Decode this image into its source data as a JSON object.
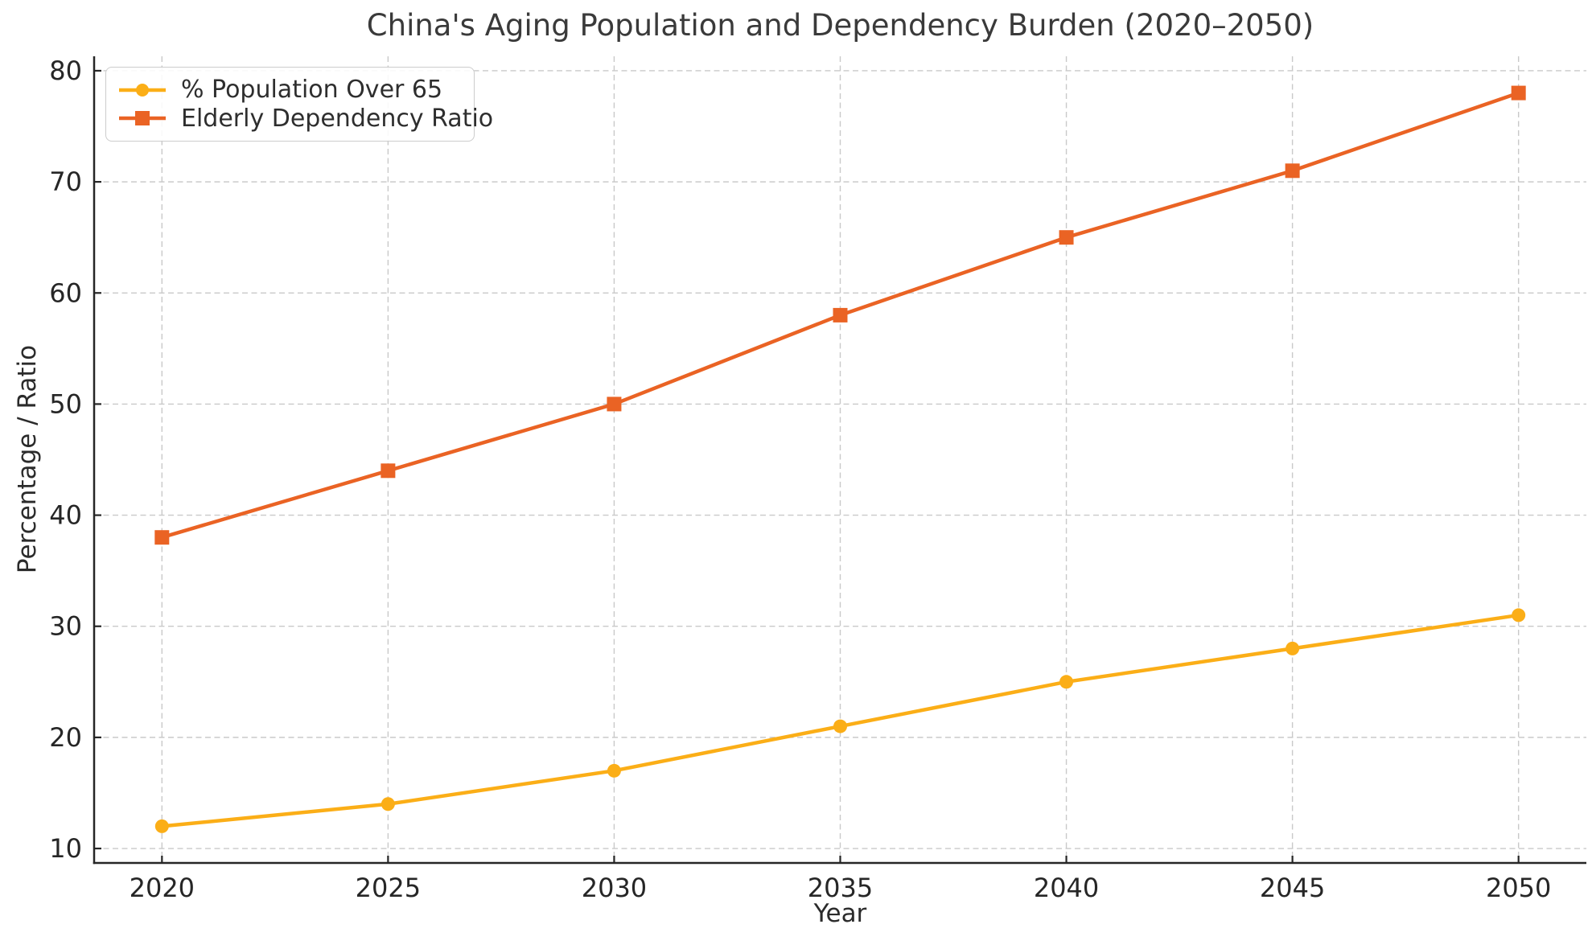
{
  "figure": {
    "background": "#ffffff"
  },
  "chart_data": {
    "type": "line",
    "title": "China's Aging Population and Dependency Burden (2020–2050)",
    "xlabel": "Year",
    "ylabel": "Percentage / Ratio",
    "x": [
      2020,
      2025,
      2030,
      2035,
      2040,
      2045,
      2050
    ],
    "series": [
      {
        "name": "% Population Over 65",
        "values": [
          12,
          14,
          17,
          21,
          25,
          28,
          31
        ],
        "color": "#FBAE17",
        "marker": "circle"
      },
      {
        "name": "Elderly Dependency Ratio",
        "values": [
          38,
          44,
          50,
          58,
          65,
          71,
          78
        ],
        "color": "#EA6324",
        "marker": "square"
      }
    ],
    "xticks": [
      2020,
      2025,
      2030,
      2035,
      2040,
      2045,
      2050
    ],
    "yticks": [
      10,
      20,
      30,
      40,
      50,
      60,
      70,
      80
    ],
    "xlim": [
      2018.5,
      2051.5
    ],
    "ylim": [
      8.7,
      81.3
    ],
    "grid": true,
    "grid_style": "dashed",
    "legend_position": "upper left"
  },
  "colors": {
    "grid": "#c9c9c9",
    "spine": "#262626",
    "tick": "#262626",
    "tick_label": "#262626",
    "title_text": "#3a3a3a",
    "axis_label": "#2b2b2b",
    "legend_border": "#cccccc",
    "legend_bg": "#ffffff",
    "legend_text": "#2e2e2e"
  }
}
